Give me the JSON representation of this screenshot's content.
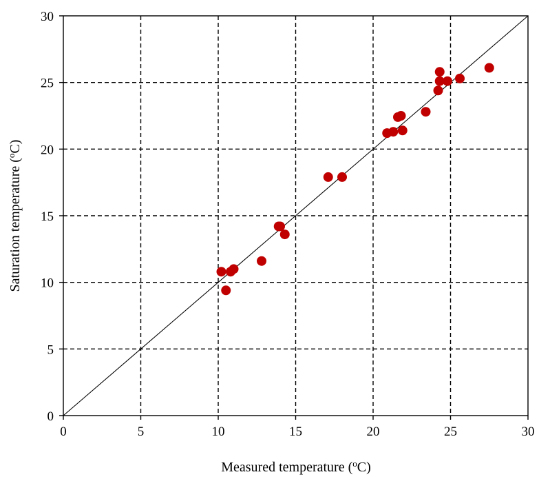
{
  "chart_data": {
    "type": "scatter",
    "title": "",
    "xlabel": "Measured temperature (",
    "xlabel_sup": "o",
    "xlabel_end": "C)",
    "ylabel": "Saturation temperature (",
    "ylabel_sup": "o",
    "ylabel_end": "C)",
    "xlim": [
      0,
      30
    ],
    "ylim": [
      0,
      30
    ],
    "xticks": [
      "0",
      "5",
      "10",
      "15",
      "20",
      "25",
      "30"
    ],
    "yticks": [
      "0",
      "5",
      "10",
      "15",
      "20",
      "25",
      "30"
    ],
    "grid": true,
    "reference_line": "y = x",
    "marker_color": "#c00000",
    "points": [
      {
        "x": 10.2,
        "y": 10.8
      },
      {
        "x": 10.5,
        "y": 9.4
      },
      {
        "x": 10.8,
        "y": 10.8
      },
      {
        "x": 11.0,
        "y": 11.0
      },
      {
        "x": 12.8,
        "y": 11.6
      },
      {
        "x": 13.9,
        "y": 14.2
      },
      {
        "x": 14.0,
        "y": 14.2
      },
      {
        "x": 14.3,
        "y": 13.6
      },
      {
        "x": 17.1,
        "y": 17.9
      },
      {
        "x": 18.0,
        "y": 17.9
      },
      {
        "x": 20.9,
        "y": 21.2
      },
      {
        "x": 21.3,
        "y": 21.3
      },
      {
        "x": 21.6,
        "y": 22.4
      },
      {
        "x": 21.8,
        "y": 22.5
      },
      {
        "x": 21.9,
        "y": 21.4
      },
      {
        "x": 23.4,
        "y": 22.8
      },
      {
        "x": 24.2,
        "y": 24.4
      },
      {
        "x": 24.3,
        "y": 25.8
      },
      {
        "x": 24.3,
        "y": 25.1
      },
      {
        "x": 24.8,
        "y": 25.1
      },
      {
        "x": 25.6,
        "y": 25.3
      },
      {
        "x": 27.5,
        "y": 26.1
      }
    ]
  }
}
